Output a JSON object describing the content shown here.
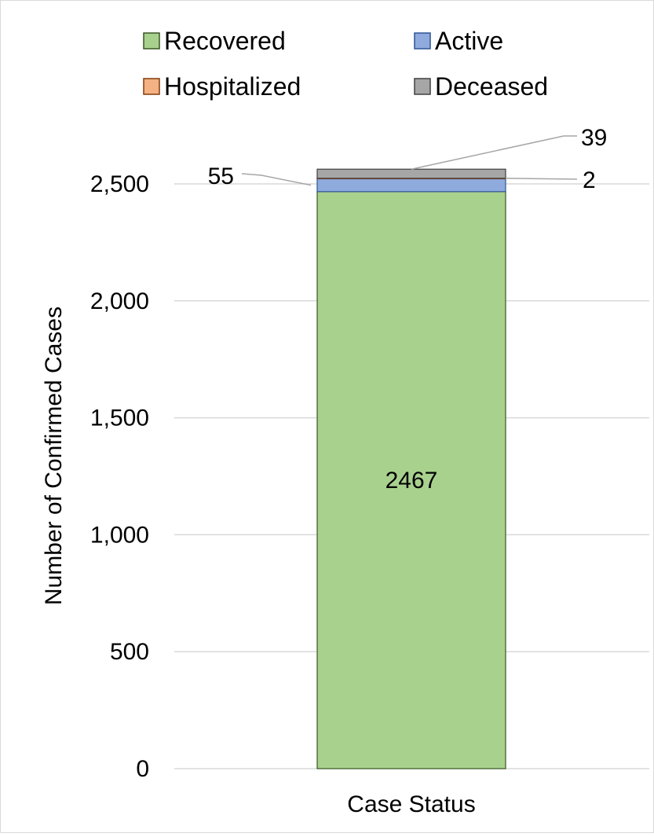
{
  "chart_data": {
    "type": "bar",
    "stacked": true,
    "categories": [
      "Case Status"
    ],
    "series": [
      {
        "name": "Recovered",
        "values": [
          2467
        ],
        "color": "#a9d18e",
        "stroke": "#385723",
        "label": "2467"
      },
      {
        "name": "Active",
        "values": [
          55
        ],
        "color": "#8faadc",
        "stroke": "#2f5597",
        "label": "55"
      },
      {
        "name": "Hospitalized",
        "values": [
          2
        ],
        "color": "#f4b183",
        "stroke": "#843c0c",
        "label": "2"
      },
      {
        "name": "Deceased",
        "values": [
          39
        ],
        "color": "#a6a6a6",
        "stroke": "#404040",
        "label": "39"
      }
    ],
    "title": "",
    "xlabel": "Case Status",
    "ylabel": "Number of Confirmed Cases",
    "ylim": [
      0,
      2500
    ],
    "yticks": [
      0,
      500,
      1000,
      1500,
      2000,
      2500
    ],
    "ytick_labels": [
      "0",
      "500",
      "1,000",
      "1,500",
      "2,000",
      "2,500"
    ],
    "grid": "horizontal",
    "legend_position": "top",
    "leader_color": "#a6a6a6",
    "grid_color": "#d9d9d9"
  }
}
